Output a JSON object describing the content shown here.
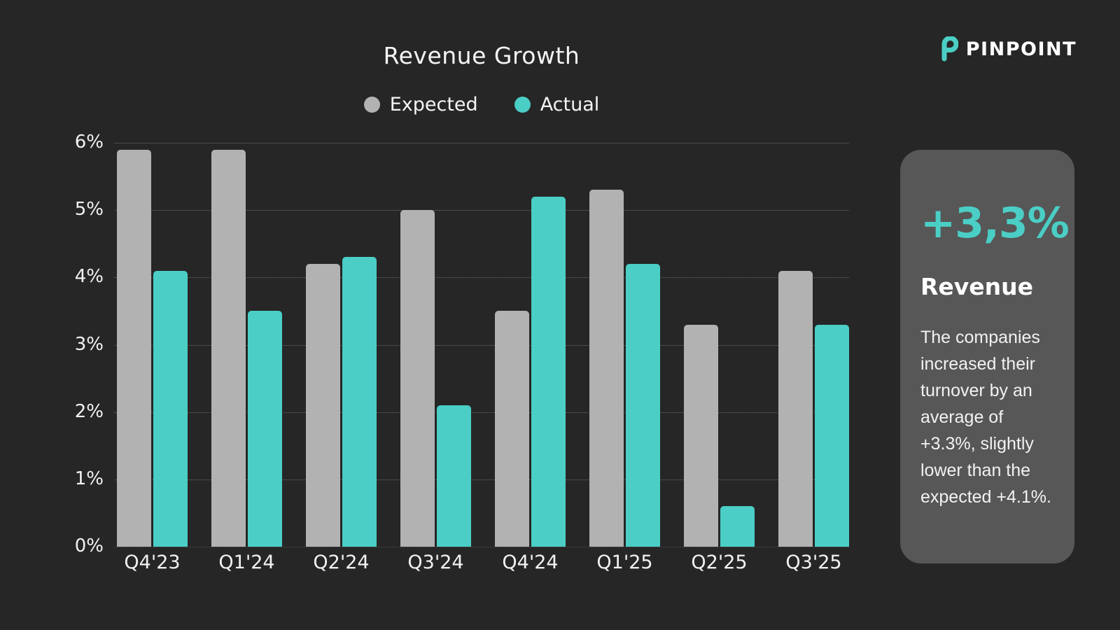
{
  "page": {
    "background": "#262626"
  },
  "header": {
    "title": "Revenue Growth"
  },
  "logo": {
    "brand": "PINPOINT",
    "icon": "pinpoint-p-icon",
    "icon_color": "#4BCEC5",
    "text_color": "#ffffff"
  },
  "chart_data": {
    "type": "bar",
    "title": "Revenue Growth",
    "categories": [
      "Q4'23",
      "Q1'24",
      "Q2'24",
      "Q3'24",
      "Q4'24",
      "Q1'25",
      "Q2'25",
      "Q3'25"
    ],
    "series": [
      {
        "name": "Expected",
        "color": "#b2b2b2",
        "values": [
          5.9,
          5.9,
          4.2,
          5.0,
          3.5,
          5.3,
          3.3,
          4.1
        ]
      },
      {
        "name": "Actual",
        "color": "#4BCEC5",
        "values": [
          4.1,
          3.5,
          4.3,
          2.1,
          5.2,
          4.2,
          0.6,
          3.3
        ]
      }
    ],
    "xlabel": "",
    "ylabel": "",
    "ylim": [
      0,
      6
    ],
    "yticks": [
      {
        "label": "6%",
        "value": 6
      },
      {
        "label": "5%",
        "value": 5
      },
      {
        "label": "4%",
        "value": 4
      },
      {
        "label": "3%",
        "value": 3
      },
      {
        "label": "2%",
        "value": 2
      },
      {
        "label": "1%",
        "value": 1
      },
      {
        "label": "0%",
        "value": 0
      }
    ],
    "grid": true,
    "legend_position": "top"
  },
  "side_card": {
    "headline": "+3,3%",
    "subtitle": "Revenue",
    "body": "The companies increased their turnover by an average of +3.3%, slightly lower than the expected +4.1%.",
    "background": "#575757",
    "headline_color": "#4BCEC5"
  }
}
